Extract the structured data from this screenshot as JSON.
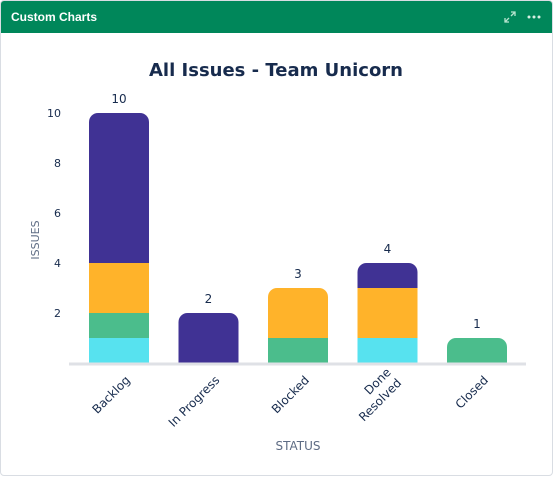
{
  "gadget": {
    "title": "Custom Charts",
    "icons": {
      "expand": "expand-icon",
      "more": "more-icon"
    }
  },
  "chart_data": {
    "type": "bar",
    "stacked": true,
    "title": "All Issues - Team Unicorn",
    "xlabel": "STATUS",
    "ylabel": "ISSUES",
    "ylim": [
      0,
      10
    ],
    "yticks": [
      2,
      4,
      6,
      8,
      10
    ],
    "categories": [
      {
        "label": "Backlog",
        "lines": [
          "Backlog"
        ]
      },
      {
        "label": "In Progress",
        "lines": [
          "In Progress"
        ]
      },
      {
        "label": "Blocked",
        "lines": [
          "Blocked"
        ]
      },
      {
        "label": "Done Resolved",
        "lines": [
          "Done",
          "Resolved"
        ]
      },
      {
        "label": "Closed",
        "lines": [
          "Closed"
        ]
      }
    ],
    "totals": [
      "10",
      "2",
      "3",
      "4",
      "1"
    ],
    "series": [
      {
        "color": "#57e2ef",
        "values": [
          1,
          0,
          0,
          1,
          0
        ]
      },
      {
        "color": "#4bbd8c",
        "values": [
          1,
          0,
          1,
          0,
          1
        ]
      },
      {
        "color": "#ffb32a",
        "values": [
          2,
          0,
          2,
          2,
          0
        ]
      },
      {
        "color": "#403294",
        "values": [
          6,
          2,
          0,
          1,
          0
        ]
      }
    ],
    "grid": false,
    "legend": "none"
  }
}
